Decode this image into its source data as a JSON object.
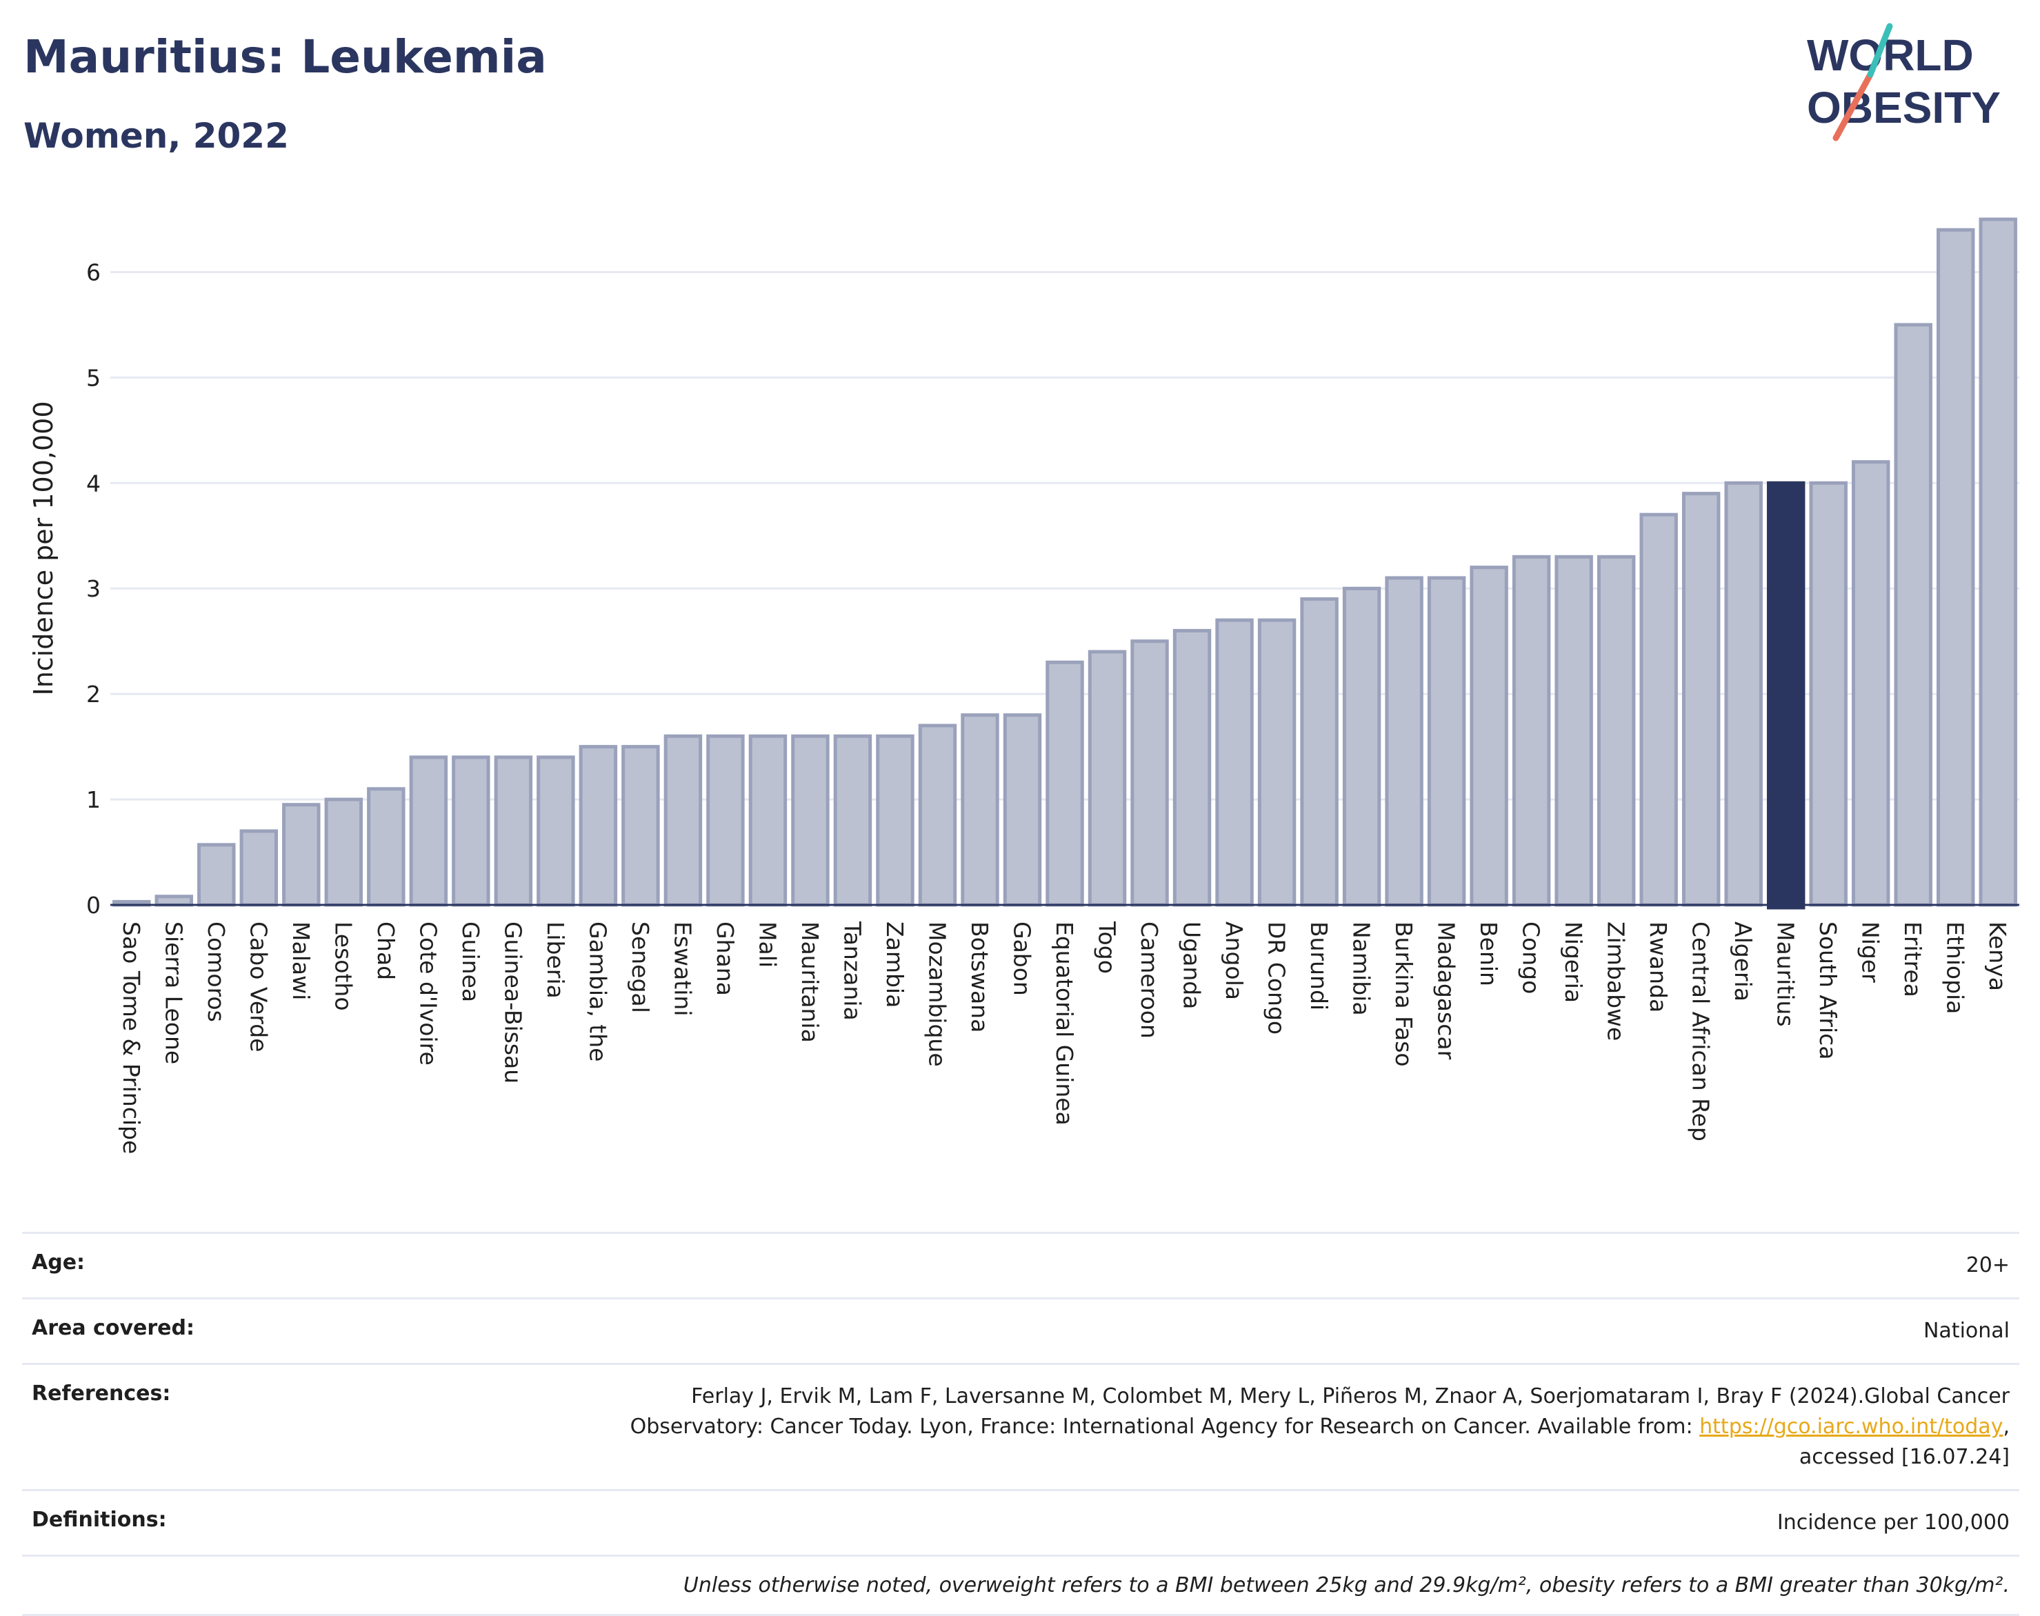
{
  "header": {
    "title": "Mauritius: Leukemia",
    "subtitle": "Women, 2022"
  },
  "logo": {
    "line1": "WORLD",
    "line2": "OBESITY",
    "accent_teal": "#3bbfb8",
    "accent_coral": "#e8705a",
    "text_color": "#2b3660"
  },
  "colors": {
    "bar_default": "#bcc1d1",
    "bar_border": "#9aa1bb",
    "bar_highlight": "#2b3660",
    "grid": "#e6e9f2",
    "axis": "#2b3660"
  },
  "chart_data": {
    "type": "bar",
    "ylabel": "Incidence per 100,000",
    "ylim": [
      0,
      6.5
    ],
    "yticks": [
      0,
      1,
      2,
      3,
      4,
      5,
      6
    ],
    "highlight": "Mauritius",
    "grid": true,
    "categories": [
      "Sao Tome & Principe",
      "Sierra Leone",
      "Comoros",
      "Cabo Verde",
      "Malawi",
      "Lesotho",
      "Chad",
      "Cote d'Ivoire",
      "Guinea",
      "Guinea-Bissau",
      "Liberia",
      "Gambia, the",
      "Senegal",
      "Eswatini",
      "Ghana",
      "Mali",
      "Mauritania",
      "Tanzania",
      "Zambia",
      "Mozambique",
      "Botswana",
      "Gabon",
      "Equatorial Guinea",
      "Togo",
      "Cameroon",
      "Uganda",
      "Angola",
      "DR Congo",
      "Burundi",
      "Namibia",
      "Burkina Faso",
      "Madagascar",
      "Benin",
      "Congo",
      "Nigeria",
      "Zimbabwe",
      "Rwanda",
      "Central African Rep",
      "Algeria",
      "Mauritius",
      "South Africa",
      "Niger",
      "Eritrea",
      "Ethiopia",
      "Kenya"
    ],
    "values": [
      0.03,
      0.08,
      0.57,
      0.7,
      0.95,
      1.0,
      1.1,
      1.4,
      1.4,
      1.4,
      1.4,
      1.5,
      1.5,
      1.6,
      1.6,
      1.6,
      1.6,
      1.6,
      1.6,
      1.7,
      1.8,
      1.8,
      2.3,
      2.4,
      2.5,
      2.6,
      2.7,
      2.7,
      2.9,
      3.0,
      3.1,
      3.1,
      3.2,
      3.3,
      3.3,
      3.3,
      3.7,
      3.9,
      4.0,
      4.0,
      4.0,
      4.2,
      5.5,
      6.4,
      6.5
    ]
  },
  "info": {
    "age_label": "Age:",
    "age_value": "20+",
    "area_label": "Area covered:",
    "area_value": "National",
    "references_label": "References:",
    "references_line1": "Ferlay J, Ervik M, Lam F, Laversanne M, Colombet M, Mery L, Piñeros M, Znaor A, Soerjomataram I, Bray F (2024).Global Cancer",
    "references_line2": "Observatory: Cancer Today. Lyon, France: International Agency for Research on Cancer. Available from: ",
    "references_link": "https://gco.iarc.who.int/today",
    "references_line2_tail": ",",
    "references_line3": "accessed [16.07.24]",
    "definitions_label": "Definitions:",
    "definitions_value": "Incidence per 100,000",
    "note": "Unless otherwise noted, overweight refers to a BMI between 25kg and 29.9kg/m², obesity refers to a BMI greater than 30kg/m²."
  }
}
